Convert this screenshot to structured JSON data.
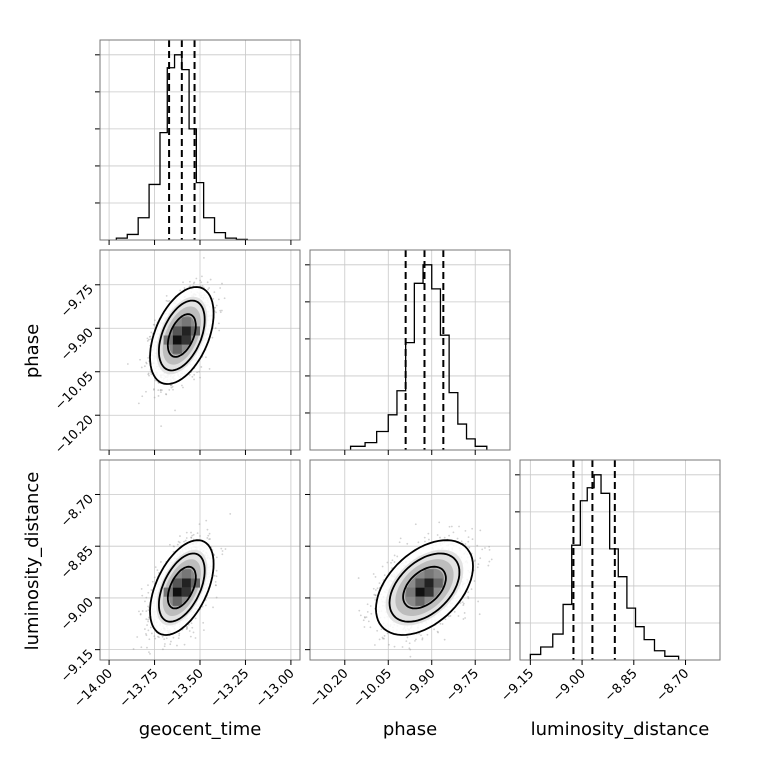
{
  "chart_data": {
    "type": "corner",
    "parameters": [
      "geocent_time",
      "phase",
      "luminosity_distance"
    ],
    "labels": {
      "x": [
        "geocent_time",
        "phase",
        "luminosity_distance"
      ],
      "y": [
        "phase",
        "luminosity_distance"
      ]
    },
    "ranges": {
      "geocent_time": [
        -14.05,
        -12.95
      ],
      "phase": [
        -10.32,
        -9.63
      ],
      "luminosity_distance": [
        -9.18,
        -8.6
      ]
    },
    "ticks": {
      "geocent_time": [
        "−14.00",
        "−13.75",
        "−13.50",
        "−13.25",
        "−13.00"
      ],
      "phase": [
        "−10.20",
        "−10.05",
        "−9.90",
        "−9.75"
      ],
      "luminosity_distance": [
        "−9.15",
        "−9.00",
        "−8.85",
        "−8.70"
      ]
    },
    "means": {
      "geocent_time": -13.6,
      "phase": -9.925,
      "luminosity_distance": -8.97
    },
    "sigmas": {
      "geocent_time": 0.07,
      "phase": 0.067,
      "luminosity_distance": 0.055
    },
    "quantiles": {
      "geocent_time": [
        -13.67,
        -13.6,
        -13.53
      ],
      "phase": [
        -9.99,
        -9.925,
        -9.86
      ],
      "luminosity_distance": [
        -9.025,
        -8.97,
        -8.905
      ]
    },
    "histograms": {
      "geocent_time": {
        "bins": [
          -13.96,
          -13.9,
          -13.84,
          -13.78,
          -13.72,
          -13.68,
          -13.64,
          -13.6,
          -13.56,
          -13.52,
          -13.48,
          -13.42,
          -13.36,
          -13.3,
          -13.24
        ],
        "counts": [
          0.01,
          0.03,
          0.12,
          0.3,
          0.58,
          0.93,
          1.0,
          0.92,
          0.6,
          0.31,
          0.12,
          0.04,
          0.01,
          0.003
        ]
      },
      "phase": {
        "bins": [
          -10.18,
          -10.13,
          -10.09,
          -10.05,
          -10.02,
          -9.99,
          -9.96,
          -9.93,
          -9.9,
          -9.87,
          -9.84,
          -9.81,
          -9.78,
          -9.75,
          -9.71
        ],
        "counts": [
          0.02,
          0.04,
          0.1,
          0.19,
          0.32,
          0.58,
          0.9,
          1.0,
          0.87,
          0.62,
          0.31,
          0.14,
          0.06,
          0.02
        ]
      },
      "luminosity_distance": {
        "bins": [
          -9.15,
          -9.12,
          -9.085,
          -9.055,
          -9.03,
          -9.005,
          -8.985,
          -8.965,
          -8.945,
          -8.92,
          -8.895,
          -8.87,
          -8.845,
          -8.82,
          -8.79,
          -8.76,
          -8.72
        ],
        "counts": [
          0.03,
          0.07,
          0.14,
          0.3,
          0.62,
          0.86,
          0.93,
          1.0,
          0.9,
          0.6,
          0.45,
          0.28,
          0.18,
          0.11,
          0.05,
          0.02
        ]
      }
    },
    "correlations": [
      {
        "x": "geocent_time",
        "y": "phase",
        "rho": 0.45
      },
      {
        "x": "geocent_time",
        "y": "luminosity_distance",
        "rho": 0.5
      },
      {
        "x": "phase",
        "y": "luminosity_distance",
        "rho": 0.45
      }
    ],
    "grid": true,
    "point_color": "#9a9a9a",
    "line_color": "#000000"
  }
}
